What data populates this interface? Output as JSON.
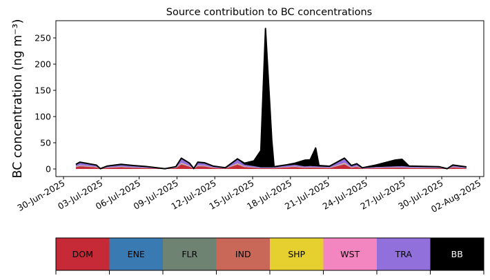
{
  "chart_data": {
    "type": "area",
    "stacked": true,
    "title": "Source contribution to BC concentrations",
    "xlabel": "",
    "ylabel": "BC concentration (ng m⁻³)",
    "ylim": [
      -12,
      285
    ],
    "yticks": [
      "0",
      "50",
      "100",
      "150",
      "200",
      "250"
    ],
    "ytick_values": [
      0,
      50,
      100,
      150,
      200,
      250
    ],
    "xlim_days_since_start": [
      -0.6,
      33.3
    ],
    "xtick_labels": [
      "30-Jun-2025",
      "03-Jul-2025",
      "06-Jul-2025",
      "09-Jul-2025",
      "12-Jul-2025",
      "15-Jul-2025",
      "18-Jul-2025",
      "21-Jul-2025",
      "24-Jul-2025",
      "27-Jul-2025",
      "30-Jul-2025",
      "02-Aug-2025"
    ],
    "xtick_days": [
      0,
      3,
      6,
      9,
      12,
      15,
      18,
      21,
      24,
      27,
      30,
      33
    ],
    "x_unit": "days since 30-Jun-2025",
    "x": [
      0.98,
      1.3,
      2.6,
      2.93,
      3.48,
      4.57,
      5.54,
      6.52,
      8.04,
      8.91,
      9.35,
      10,
      10.33,
      10.65,
      11.2,
      11.85,
      12.83,
      13.8,
      14.35,
      15.1,
      15.65,
      16.02,
      16.52,
      16.7,
      17.6,
      18.37,
      19.13,
      19.57,
      20,
      20.26,
      21.1,
      22.28,
      22.83,
      23.26,
      23.7,
      24.78,
      26.3,
      26.85,
      27.4,
      29.78,
      30.43,
      30.87,
      31.96
    ],
    "total": [
      8.8,
      13,
      7.5,
      0.5,
      5.7,
      8.8,
      6.6,
      4.8,
      0.5,
      4.4,
      20.6,
      11,
      0.8,
      13,
      11.8,
      5.7,
      2.2,
      19.3,
      11,
      15.4,
      35,
      268,
      55,
      4.4,
      7.5,
      11,
      16.7,
      17.5,
      40,
      6.6,
      5.3,
      20.6,
      6.6,
      10,
      2.2,
      7.5,
      17,
      18.4,
      5.7,
      4.4,
      0.5,
      7.5,
      4
    ],
    "BB": [
      1.5,
      1.5,
      1.2,
      0.2,
      1,
      1.5,
      1.2,
      1,
      0.2,
      1,
      1.5,
      1.5,
      0.3,
      1.5,
      1.5,
      1,
      0.5,
      1.5,
      3,
      10,
      32,
      265,
      52,
      1,
      1.5,
      3,
      12,
      12,
      35,
      2,
      1.5,
      1.5,
      1.5,
      1.5,
      0.5,
      4,
      12,
      13,
      1.5,
      1.2,
      0.2,
      1.5,
      1.2
    ],
    "non_bb_shares": {
      "DOM": 0.45,
      "ENE": 0.03,
      "FLR": 0.02,
      "IND": 0.04,
      "SHP": 0.03,
      "WST": 0.05,
      "TRA": 0.38
    },
    "legend": {
      "placement": "bottom-colorbar",
      "entries": [
        {
          "label": "DOM",
          "color": "#c52a36"
        },
        {
          "label": "ENE",
          "color": "#3a7ab3"
        },
        {
          "label": "FLR",
          "color": "#6f8373"
        },
        {
          "label": "IND",
          "color": "#c96858"
        },
        {
          "label": "SHP",
          "color": "#e5d02f"
        },
        {
          "label": "WST",
          "color": "#f385c0"
        },
        {
          "label": "TRA",
          "color": "#9270db"
        },
        {
          "label": "BB",
          "color": "#000000"
        }
      ]
    }
  }
}
